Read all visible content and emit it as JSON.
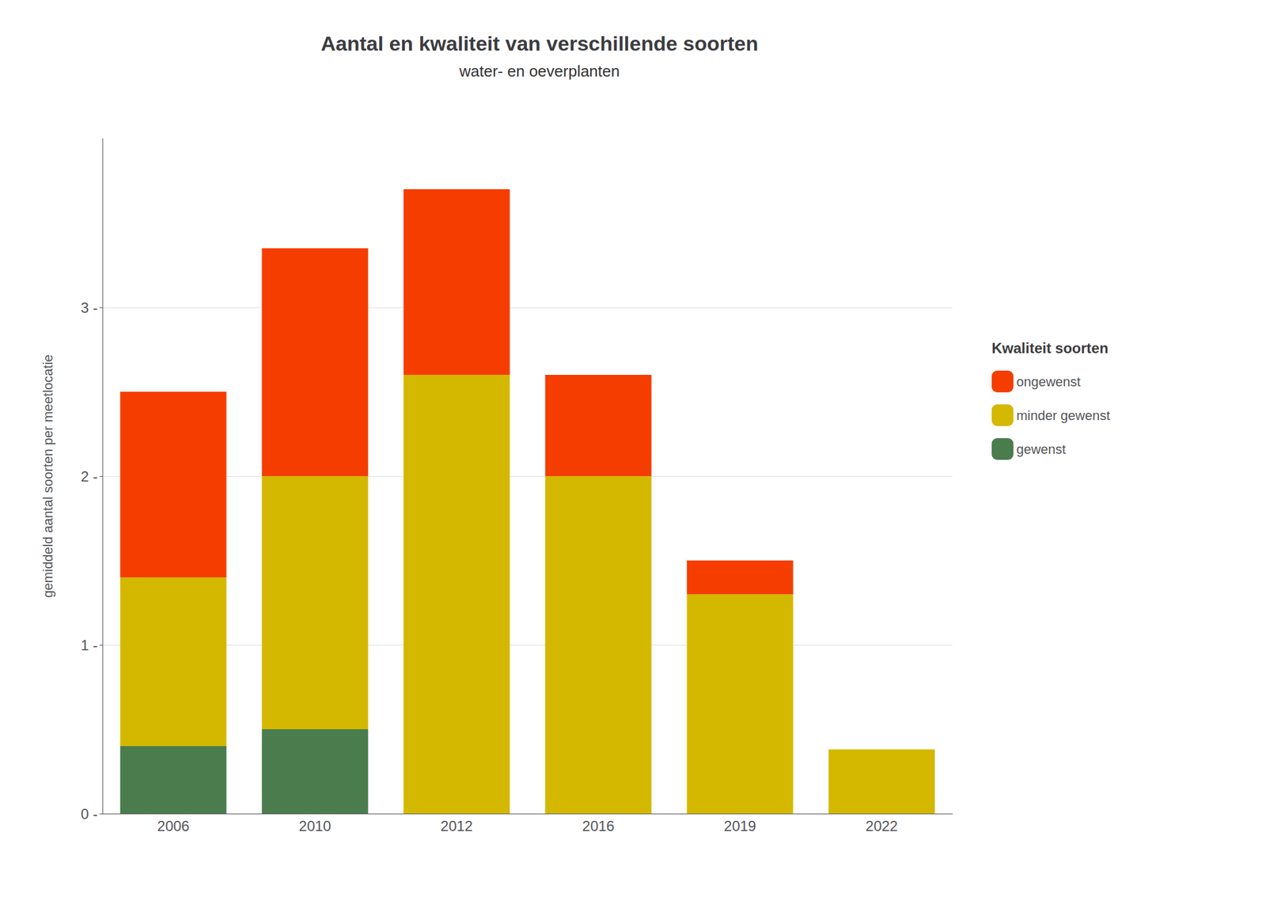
{
  "chart_data": {
    "type": "bar",
    "title": "Aantal en kwaliteit van verschillende soorten",
    "subtitle": "water- en oeverplanten",
    "ylabel": "gemiddeld aantal soorten per meetlocatie",
    "legend_title": "Kwaliteit soorten",
    "categories": [
      "2006",
      "2010",
      "2012",
      "2016",
      "2019",
      "2022"
    ],
    "series": [
      {
        "name": "gewenst",
        "color": "#4a7c4e",
        "values": [
          0.4,
          0.5,
          0.0,
          0.0,
          0.0,
          0.0
        ]
      },
      {
        "name": "minder gewenst",
        "color": "#d4b800",
        "values": [
          1.0,
          1.5,
          2.6,
          2.0,
          1.3,
          0.38
        ]
      },
      {
        "name": "ongewenst",
        "color": "#f53d00",
        "values": [
          1.1,
          1.35,
          1.1,
          0.6,
          0.2,
          0.0
        ]
      }
    ],
    "stacked": true,
    "ylim": [
      0,
      4.0
    ],
    "yticks": [
      {
        "value": 0,
        "label": "0 -"
      },
      {
        "value": 1,
        "label": "1 -"
      },
      {
        "value": 2,
        "label": "2 -"
      },
      {
        "value": 3,
        "label": "3 -"
      }
    ],
    "grid": true,
    "legend": "right"
  }
}
